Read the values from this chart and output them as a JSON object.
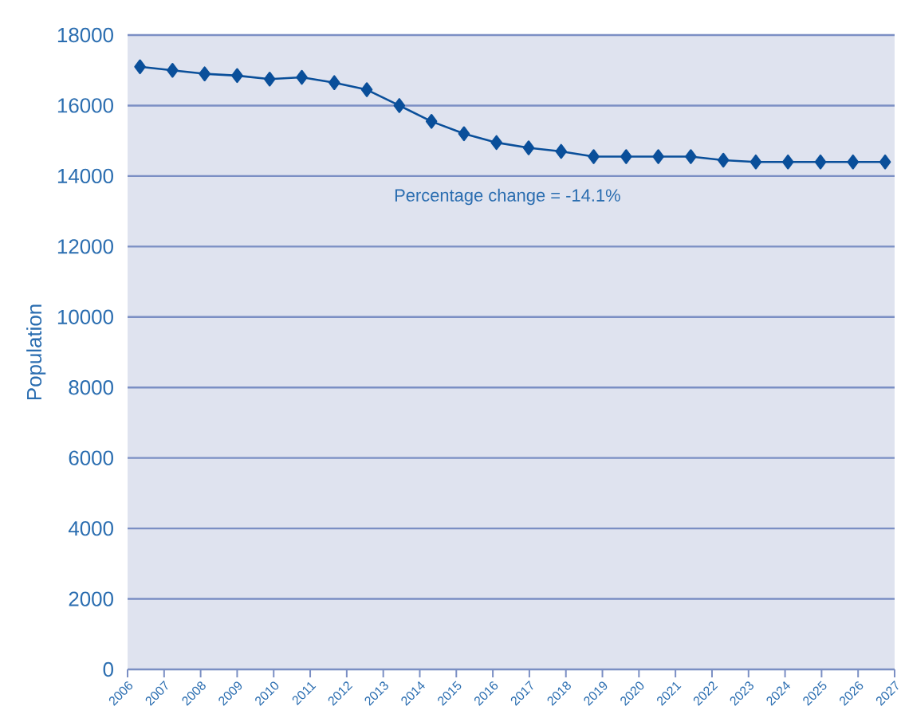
{
  "chart_data": {
    "type": "line",
    "ylabel": "Population",
    "x": [
      2006.34,
      2007.23,
      2008.11,
      2009.0,
      2009.89,
      2010.77,
      2011.66,
      2012.55,
      2013.44,
      2014.32,
      2015.21,
      2016.1,
      2016.98,
      2017.87,
      2018.76,
      2019.65,
      2020.53,
      2021.42,
      2022.31,
      2023.2,
      2024.08,
      2024.97,
      2025.86,
      2026.74
    ],
    "series": [
      {
        "color": "#0a4f9a",
        "values": [
          17100,
          17000,
          16900,
          16850,
          16750,
          16800,
          16650,
          16450,
          16000,
          15550,
          15200,
          14950,
          14800,
          14700,
          14550,
          14550,
          14550,
          14550,
          14450,
          14400,
          14400,
          14400,
          14400,
          14400
        ]
      }
    ],
    "xlim": [
      2006,
      2027
    ],
    "xticks": [
      2006,
      2007,
      2008,
      2009,
      2010,
      2011,
      2012,
      2013,
      2014,
      2015,
      2016,
      2017,
      2018,
      2019,
      2020,
      2021,
      2022,
      2023,
      2024,
      2025,
      2026,
      2027
    ],
    "ylim": [
      0,
      18000
    ],
    "yticks": [
      0,
      2000,
      4000,
      6000,
      8000,
      10000,
      12000,
      14000,
      16000,
      18000
    ],
    "grid": "y",
    "marker": "diamond",
    "line_style": "solid",
    "annotations": [
      "Percentage change = -14.1%"
    ]
  }
}
